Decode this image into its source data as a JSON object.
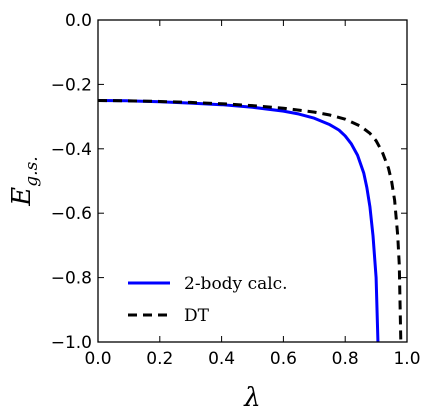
{
  "chart_data": {
    "type": "line",
    "xlabel": "λ",
    "ylabel_main": "E",
    "ylabel_sub": "g.s.",
    "xlim": [
      0.0,
      1.0
    ],
    "ylim": [
      -1.0,
      0.0
    ],
    "grid": false,
    "legend_placement": "lower-left",
    "x_ticks": [
      0.0,
      0.2,
      0.4,
      0.6,
      0.8,
      1.0
    ],
    "x_tick_labels": [
      "0.0",
      "0.2",
      "0.4",
      "0.6",
      "0.8",
      "1.0"
    ],
    "y_ticks": [
      0.0,
      -0.2,
      -0.4,
      -0.6,
      -0.8,
      -1.0
    ],
    "y_tick_labels": [
      "0.0",
      "−0.2",
      "−0.4",
      "−0.6",
      "−0.8",
      "−1.0"
    ],
    "series": [
      {
        "name": "2-body calc.",
        "color": "#0000ff",
        "style": "solid",
        "x": [
          0.0,
          0.1,
          0.2,
          0.3,
          0.4,
          0.5,
          0.6,
          0.65,
          0.7,
          0.75,
          0.78,
          0.8,
          0.82,
          0.84,
          0.86,
          0.87,
          0.88,
          0.89,
          0.9,
          0.906
        ],
        "y": [
          -0.25,
          -0.251,
          -0.254,
          -0.258,
          -0.263,
          -0.271,
          -0.283,
          -0.292,
          -0.305,
          -0.325,
          -0.342,
          -0.36,
          -0.385,
          -0.42,
          -0.475,
          -0.52,
          -0.58,
          -0.67,
          -0.8,
          -1.0
        ]
      },
      {
        "name": "DT",
        "color": "#000000",
        "style": "dashed",
        "x": [
          0.0,
          0.1,
          0.2,
          0.3,
          0.4,
          0.5,
          0.6,
          0.7,
          0.75,
          0.8,
          0.85,
          0.88,
          0.9,
          0.92,
          0.94,
          0.95,
          0.96,
          0.97,
          0.975,
          0.98
        ],
        "y": [
          -0.25,
          -0.251,
          -0.253,
          -0.256,
          -0.26,
          -0.266,
          -0.274,
          -0.286,
          -0.295,
          -0.308,
          -0.33,
          -0.352,
          -0.375,
          -0.41,
          -0.46,
          -0.5,
          -0.56,
          -0.67,
          -0.76,
          -1.0
        ]
      }
    ]
  }
}
